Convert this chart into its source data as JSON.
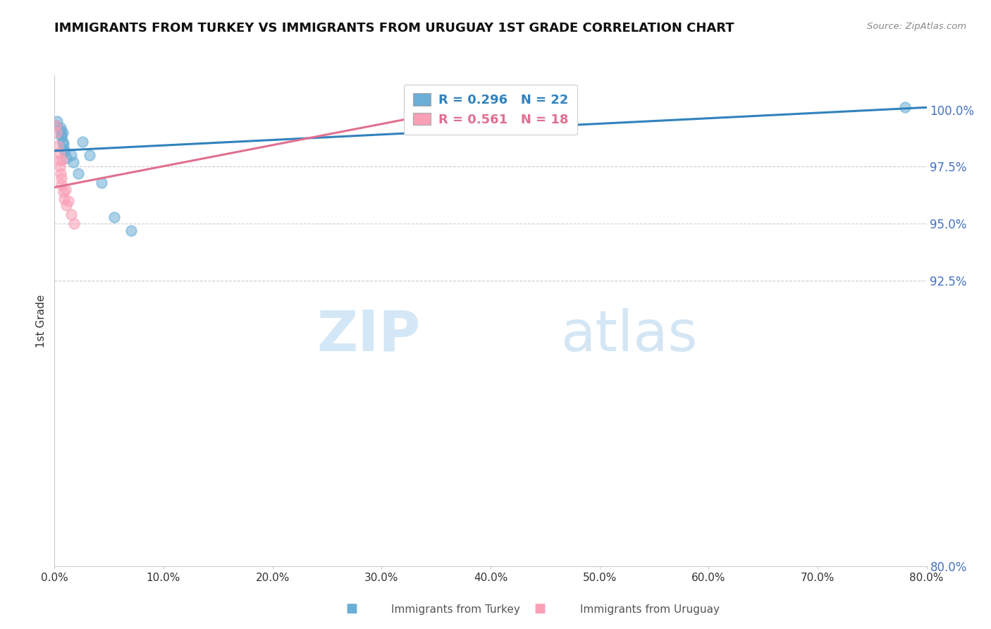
{
  "title": "IMMIGRANTS FROM TURKEY VS IMMIGRANTS FROM URUGUAY 1ST GRADE CORRELATION CHART",
  "source": "Source: ZipAtlas.com",
  "ylabel": "1st Grade",
  "xlim": [
    0.0,
    80.0
  ],
  "ylim": [
    80.0,
    101.5
  ],
  "yticks": [
    80.0,
    92.5,
    95.0,
    97.5,
    100.0
  ],
  "ytick_labels": [
    "80.0%",
    "92.5%",
    "95.0%",
    "97.5%",
    "100.0%"
  ],
  "xticks": [
    0.0,
    10.0,
    20.0,
    30.0,
    40.0,
    50.0,
    60.0,
    70.0,
    80.0
  ],
  "xtick_labels": [
    "0.0%",
    "10.0%",
    "20.0%",
    "30.0%",
    "40.0%",
    "50.0%",
    "60.0%",
    "70.0%",
    "80.0%"
  ],
  "turkey_R": 0.296,
  "turkey_N": 22,
  "uruguay_R": 0.561,
  "uruguay_N": 18,
  "turkey_color": "#6baed6",
  "uruguay_color": "#fa9fb5",
  "turkey_line_color": "#3182bd",
  "uruguay_line_color": "#e07090",
  "legend_label_turkey": "Immigrants from Turkey",
  "legend_label_uruguay": "Immigrants from Uruguay",
  "watermark_zip": "ZIP",
  "watermark_atlas": "atlas",
  "turkey_x": [
    0.15,
    0.25,
    0.55,
    0.65,
    0.75,
    0.85,
    0.55,
    0.65,
    0.75,
    0.85,
    0.95,
    1.05,
    1.55,
    1.75,
    2.15,
    2.55,
    3.2,
    4.3,
    5.5,
    7.0,
    40.0,
    78.0
  ],
  "turkey_y": [
    99.3,
    99.5,
    99.2,
    98.8,
    98.6,
    98.5,
    99.1,
    98.9,
    99.0,
    98.3,
    98.2,
    97.9,
    98.0,
    97.7,
    97.2,
    98.6,
    98.0,
    96.8,
    95.3,
    94.7,
    100.05,
    100.1
  ],
  "uruguay_x": [
    0.1,
    0.2,
    0.3,
    0.4,
    0.45,
    0.5,
    0.55,
    0.6,
    0.65,
    0.7,
    0.8,
    0.9,
    1.0,
    1.1,
    1.3,
    1.5,
    1.8,
    40.0
  ],
  "uruguay_y": [
    99.3,
    99.0,
    98.4,
    98.1,
    97.8,
    97.5,
    97.2,
    97.0,
    96.7,
    97.8,
    96.4,
    96.1,
    96.5,
    95.8,
    96.0,
    95.4,
    95.0,
    100.1
  ],
  "turkey_trendline_x": [
    0.0,
    80.0
  ],
  "turkey_trendline_y": [
    98.2,
    100.1
  ],
  "uruguay_trendline_x": [
    0.0,
    40.0
  ],
  "uruguay_trendline_y": [
    96.6,
    100.3
  ]
}
